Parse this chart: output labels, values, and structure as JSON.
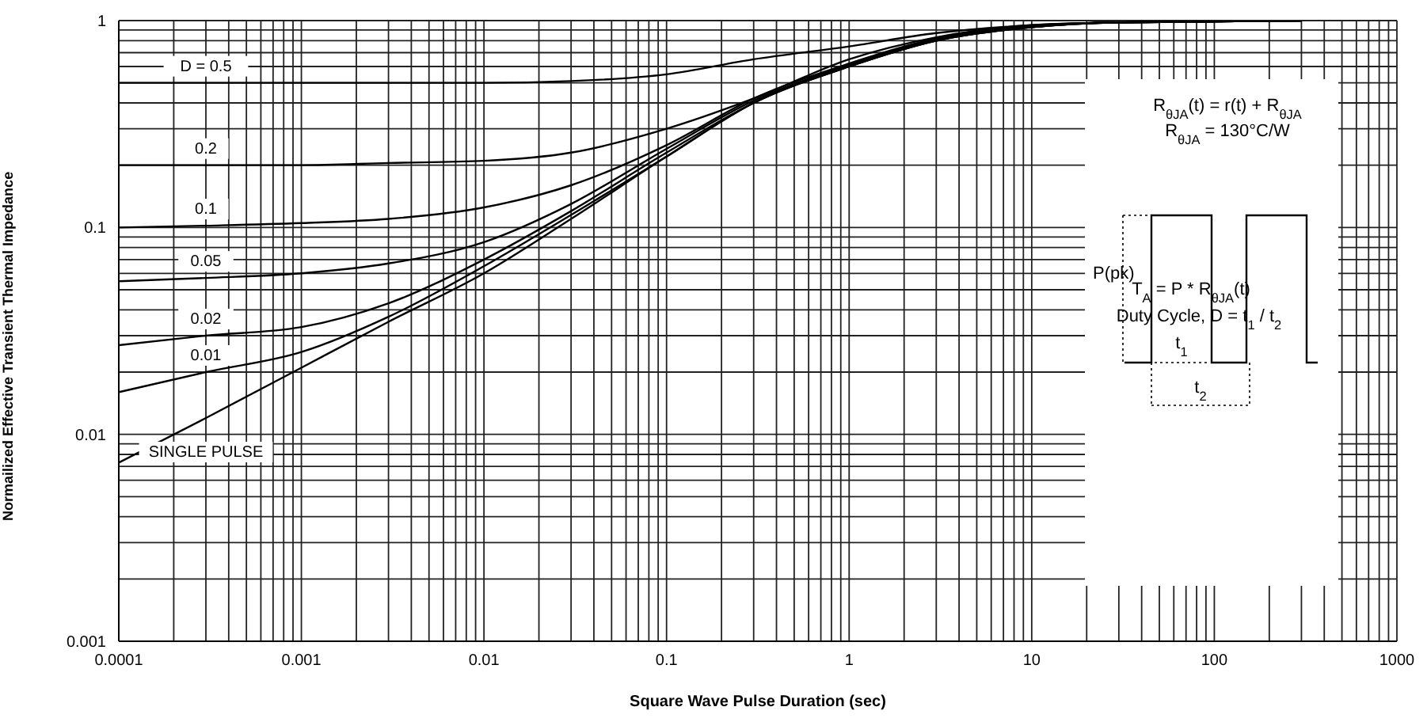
{
  "chart_data": {
    "type": "line",
    "xlabel": "Square Wave Pulse Duration (sec)",
    "ylabel": "Normailized Effective Transient Thermal Impedance",
    "log": "xy",
    "grid": true,
    "marker": "none",
    "line_style": "solid",
    "xlim": [
      0.0001,
      1000
    ],
    "ylim": [
      0.001,
      1
    ],
    "xticks": [
      0.0001,
      {
        "value": 0.0002,
        "label": null
      },
      {
        "value": 0.0003,
        "label": null
      },
      {
        "value": 0.0004,
        "label": null
      },
      {
        "value": 0.0005,
        "label": null
      },
      {
        "value": 0.0006,
        "label": null
      },
      {
        "value": 0.0007,
        "label": null
      },
      {
        "value": 0.0008,
        "label": null
      },
      {
        "value": 0.0009,
        "label": null
      },
      0.001,
      {
        "value": 0.002,
        "label": null
      },
      {
        "value": 0.003,
        "label": null
      },
      {
        "value": 0.004,
        "label": null
      },
      {
        "value": 0.005,
        "label": null
      },
      {
        "value": 0.006,
        "label": null
      },
      {
        "value": 0.007,
        "label": null
      },
      {
        "value": 0.008,
        "label": null
      },
      {
        "value": 0.009,
        "label": null
      },
      0.01,
      {
        "value": 0.02,
        "label": null
      },
      {
        "value": 0.03,
        "label": null
      },
      {
        "value": 0.04,
        "label": null
      },
      {
        "value": 0.05,
        "label": null
      },
      {
        "value": 0.06,
        "label": null
      },
      {
        "value": 0.07,
        "label": null
      },
      {
        "value": 0.08,
        "label": null
      },
      {
        "value": 0.09,
        "label": null
      },
      0.1,
      {
        "value": 0.2,
        "label": null
      },
      {
        "value": 0.3,
        "label": null
      },
      {
        "value": 0.4,
        "label": null
      },
      {
        "value": 0.5,
        "label": null
      },
      {
        "value": 0.6,
        "label": null
      },
      {
        "value": 0.7,
        "label": null
      },
      {
        "value": 0.8,
        "label": null
      },
      {
        "value": 0.9,
        "label": null
      },
      1,
      {
        "value": 2,
        "label": null
      },
      {
        "value": 3,
        "label": null
      },
      {
        "value": 4,
        "label": null
      },
      {
        "value": 5,
        "label": null
      },
      {
        "value": 6,
        "label": null
      },
      {
        "value": 7,
        "label": null
      },
      {
        "value": 8,
        "label": null
      },
      {
        "value": 9,
        "label": null
      },
      10,
      {
        "value": 20,
        "label": null
      },
      {
        "value": 30,
        "label": null
      },
      {
        "value": 40,
        "label": null
      },
      {
        "value": 50,
        "label": null
      },
      {
        "value": 60,
        "label": null
      },
      {
        "value": 70,
        "label": null
      },
      {
        "value": 80,
        "label": null
      },
      {
        "value": 90,
        "label": null
      },
      100,
      {
        "value": 200,
        "label": null
      },
      {
        "value": 300,
        "label": null
      },
      {
        "value": 400,
        "label": null
      },
      {
        "value": 500,
        "label": null
      },
      {
        "value": 600,
        "label": null
      },
      {
        "value": 700,
        "label": null
      },
      {
        "value": 800,
        "label": null
      },
      {
        "value": 900,
        "label": null
      },
      1000
    ],
    "yticks": [
      0.001,
      {
        "value": 0.002,
        "label": null
      },
      {
        "value": 0.003,
        "label": null
      },
      {
        "value": 0.004,
        "label": null
      },
      {
        "value": 0.005,
        "label": null
      },
      {
        "value": 0.006,
        "label": null
      },
      {
        "value": 0.007,
        "label": null
      },
      {
        "value": 0.008,
        "label": null
      },
      {
        "value": 0.009,
        "label": null
      },
      0.01,
      {
        "value": 0.02,
        "label": null
      },
      {
        "value": 0.03,
        "label": null
      },
      {
        "value": 0.04,
        "label": null
      },
      {
        "value": 0.05,
        "label": null
      },
      {
        "value": 0.06,
        "label": null
      },
      {
        "value": 0.07,
        "label": null
      },
      {
        "value": 0.08,
        "label": null
      },
      {
        "value": 0.09,
        "label": null
      },
      0.1,
      {
        "value": 0.2,
        "label": null
      },
      {
        "value": 0.3,
        "label": null
      },
      {
        "value": 0.4,
        "label": null
      },
      {
        "value": 0.5,
        "label": null
      },
      {
        "value": 0.6,
        "label": null
      },
      {
        "value": 0.7,
        "label": null
      },
      {
        "value": 0.8,
        "label": null
      },
      {
        "value": 0.9,
        "label": null
      },
      1
    ],
    "x": [
      0.0001,
      0.0003,
      0.001,
      0.003,
      0.01,
      0.03,
      0.1,
      0.3,
      1,
      3,
      10,
      30,
      100,
      300
    ],
    "series": [
      {
        "name": "D = 0.5",
        "color": "#000000",
        "values": [
          0.5,
          0.5,
          0.5,
          0.5,
          0.5,
          0.51,
          0.55,
          0.65,
          0.75,
          0.87,
          0.95,
          0.98,
          0.99,
          1
        ]
      },
      {
        "name": "0.2",
        "color": "#000000",
        "values": [
          0.2,
          0.2,
          0.2,
          0.205,
          0.21,
          0.23,
          0.3,
          0.42,
          0.65,
          0.83,
          0.95,
          0.98,
          0.99,
          1
        ]
      },
      {
        "name": "0.1",
        "color": "#000000",
        "values": [
          0.1,
          0.102,
          0.105,
          0.11,
          0.125,
          0.16,
          0.25,
          0.42,
          0.62,
          0.82,
          0.94,
          0.98,
          0.99,
          1
        ]
      },
      {
        "name": "0.05",
        "color": "#000000",
        "values": [
          0.055,
          0.057,
          0.06,
          0.067,
          0.085,
          0.13,
          0.24,
          0.41,
          0.61,
          0.81,
          0.93,
          0.98,
          0.99,
          1
        ]
      },
      {
        "name": "0.02",
        "color": "#000000",
        "values": [
          0.027,
          0.03,
          0.033,
          0.043,
          0.07,
          0.12,
          0.23,
          0.4,
          0.6,
          0.8,
          0.93,
          0.98,
          0.99,
          1
        ]
      },
      {
        "name": "0.01",
        "color": "#000000",
        "values": [
          0.016,
          0.02,
          0.025,
          0.037,
          0.065,
          0.115,
          0.22,
          0.4,
          0.6,
          0.8,
          0.93,
          0.98,
          0.99,
          1
        ]
      },
      {
        "name": "SINGLE PULSE",
        "color": "#000000",
        "values": [
          0.0073,
          0.012,
          0.021,
          0.035,
          0.06,
          0.11,
          0.22,
          0.4,
          0.6,
          0.8,
          0.93,
          0.98,
          0.99,
          1
        ]
      }
    ],
    "annotations": [
      "R$_{θJA}$(t) = r(t) + R$_{θJA}$",
      "R$_{θJA}$ = 130°C/W",
      "P(pk)",
      "T$_{A}$ = P * R$_{θJA}$(t)",
      "Duty Cycle, D = t$_{1}$ / t$_{2}$",
      "t$_{1}$",
      "t$_{2}$"
    ]
  }
}
